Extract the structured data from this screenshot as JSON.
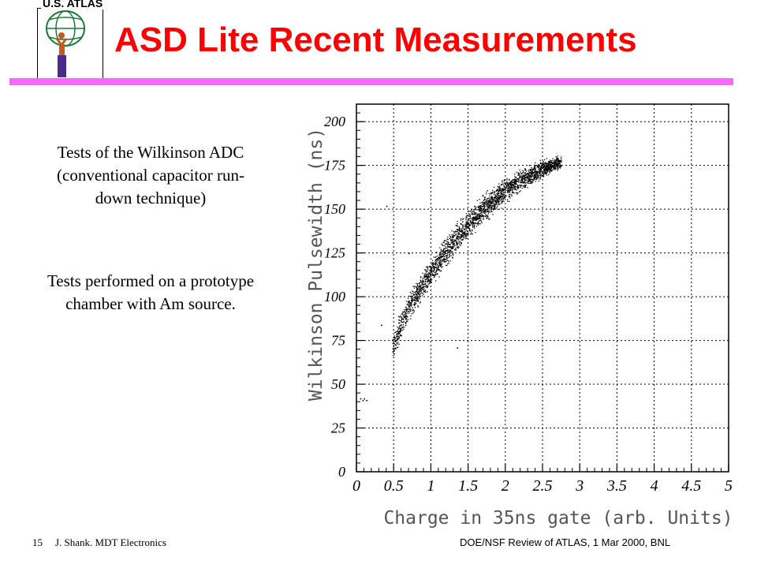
{
  "header": {
    "logo_text": "U.S. ATLAS",
    "title": "ASD Lite Recent Measurements"
  },
  "body": {
    "paragraph1": "Tests of the Wilkinson ADC\n(conventional capacitor run-\ndown technique)",
    "paragraph2": "Tests performed on a prototype\nchamber with Am source."
  },
  "footer": {
    "page_number": "15",
    "author": "J. Shank. MDT Electronics",
    "event": "DOE/NSF Review of ATLAS, 1 Mar 2000, BNL"
  },
  "colors": {
    "title": "#ff0000",
    "rule": "#ff66ff",
    "points": "#000000",
    "grid": "#000000"
  },
  "chart_data": {
    "type": "scatter",
    "title": "",
    "xlabel": "Charge in 35ns gate (arb. Units)",
    "ylabel": "Wilkinson Pulsewidth (ns)",
    "xlim": [
      0,
      5
    ],
    "ylim": [
      0,
      210
    ],
    "x_ticks": [
      "0",
      "0.5",
      "1",
      "1.5",
      "2",
      "2.5",
      "3",
      "3.5",
      "4",
      "4.5",
      "5"
    ],
    "y_ticks": [
      "0",
      "25",
      "50",
      "75",
      "100",
      "125",
      "150",
      "175",
      "200"
    ],
    "grid": true,
    "band": {
      "description_points": [
        {
          "x": 0.48,
          "y_low": 62,
          "y_high": 80
        },
        {
          "x": 0.6,
          "y_low": 72,
          "y_high": 97
        },
        {
          "x": 0.75,
          "y_low": 88,
          "y_high": 108
        },
        {
          "x": 0.9,
          "y_low": 97,
          "y_high": 118
        },
        {
          "x": 1.0,
          "y_low": 104,
          "y_high": 124
        },
        {
          "x": 1.25,
          "y_low": 117,
          "y_high": 140
        },
        {
          "x": 1.5,
          "y_low": 131,
          "y_high": 152
        },
        {
          "x": 1.75,
          "y_low": 142,
          "y_high": 162
        },
        {
          "x": 2.0,
          "y_low": 152,
          "y_high": 170
        },
        {
          "x": 2.25,
          "y_low": 160,
          "y_high": 176
        },
        {
          "x": 2.5,
          "y_low": 167,
          "y_high": 180
        },
        {
          "x": 2.75,
          "y_low": 172,
          "y_high": 182
        }
      ],
      "point_count": 2600
    },
    "outliers": [
      {
        "x": 0.05,
        "y": 42
      },
      {
        "x": 0.08,
        "y": 41
      },
      {
        "x": 0.1,
        "y": 42
      },
      {
        "x": 0.13,
        "y": 41
      },
      {
        "x": 0.33,
        "y": 84
      },
      {
        "x": 0.7,
        "y": 125
      },
      {
        "x": 1.35,
        "y": 71
      },
      {
        "x": 0.4,
        "y": 152
      }
    ]
  }
}
